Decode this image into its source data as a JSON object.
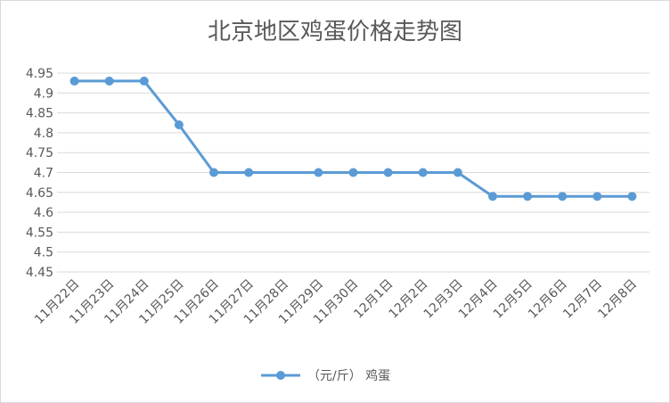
{
  "chart_data": {
    "type": "line",
    "title": "北京地区鸡蛋价格走势图",
    "xlabel": "",
    "ylabel": "",
    "categories": [
      "11月22日",
      "11月23日",
      "11月24日",
      "11月25日",
      "11月26日",
      "11月27日",
      "11月28日",
      "11月29日",
      "11月30日",
      "12月1日",
      "12月2日",
      "12月3日",
      "12月4日",
      "12月5日",
      "12月6日",
      "12月7日",
      "12月8日"
    ],
    "series": [
      {
        "name": "（元/斤） 鸡蛋",
        "color": "#5b9bd5",
        "values": [
          4.93,
          4.93,
          4.93,
          4.82,
          4.7,
          4.7,
          null,
          4.7,
          4.7,
          4.7,
          4.7,
          4.7,
          4.64,
          4.64,
          4.64,
          4.64,
          4.64
        ]
      }
    ],
    "ylim": [
      4.45,
      4.95
    ],
    "yticks": [
      "4.95",
      "4.9",
      "4.85",
      "4.8",
      "4.75",
      "4.7",
      "4.65",
      "4.6",
      "4.55",
      "4.5",
      "4.45"
    ],
    "grid": true,
    "legend": "bottom"
  }
}
